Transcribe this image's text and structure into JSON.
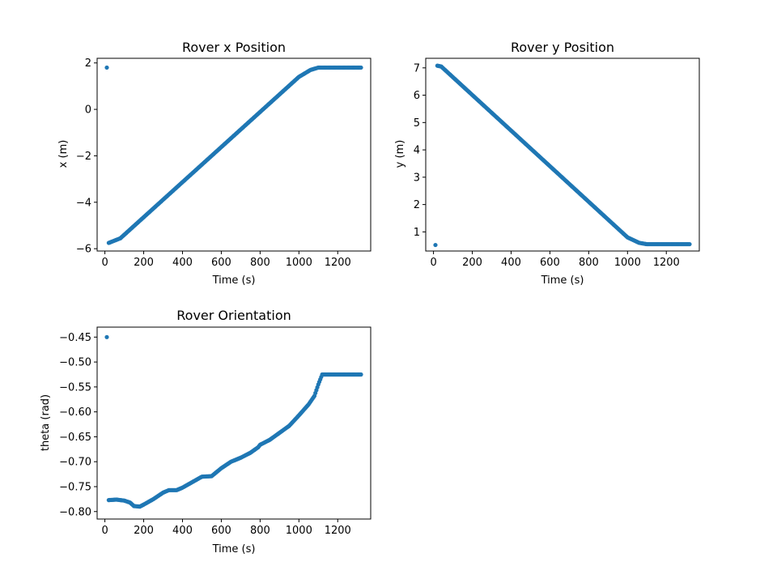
{
  "figure": {
    "background": "#ffffff",
    "marker_color": "#1f77b4"
  },
  "chart_data": [
    {
      "type": "scatter",
      "title": "Rover x Position",
      "xlabel": "Time (s)",
      "ylabel": "x (m)",
      "xlim": [
        -40,
        1370
      ],
      "ylim": [
        -6.1,
        2.2
      ],
      "xticks": [
        0,
        200,
        400,
        600,
        800,
        1000,
        1200
      ],
      "yticks": [
        -6,
        -4,
        -2,
        0,
        2
      ],
      "xtick_labels": [
        "0",
        "200",
        "400",
        "600",
        "800",
        "1000",
        "1200"
      ],
      "ytick_labels": [
        "−6",
        "−4",
        "−2",
        "0",
        "2"
      ],
      "grid": false,
      "points": {
        "first": [
          10,
          1.8
        ],
        "ramp_start": [
          20,
          -5.75
        ],
        "ramp_end": [
          1100,
          1.8
        ],
        "plateau_end": [
          1320,
          1.8
        ],
        "ramp_bend": [
          [
            80,
            -5.55
          ],
          [
            1000,
            1.4
          ],
          [
            1060,
            1.7
          ]
        ]
      }
    },
    {
      "type": "scatter",
      "title": "Rover y Position",
      "xlabel": "Time (s)",
      "ylabel": "y (m)",
      "xlim": [
        -40,
        1370
      ],
      "ylim": [
        0.3,
        7.35
      ],
      "xticks": [
        0,
        200,
        400,
        600,
        800,
        1000,
        1200
      ],
      "yticks": [
        1,
        2,
        3,
        4,
        5,
        6,
        7
      ],
      "xtick_labels": [
        "0",
        "200",
        "400",
        "600",
        "800",
        "1000",
        "1200"
      ],
      "ytick_labels": [
        "1",
        "2",
        "3",
        "4",
        "5",
        "6",
        "7"
      ],
      "grid": false,
      "points": {
        "first": [
          10,
          0.52
        ],
        "ramp_start": [
          20,
          7.08
        ],
        "ramp_end": [
          1100,
          0.55
        ],
        "plateau_end": [
          1320,
          0.55
        ],
        "ramp_bend": [
          [
            40,
            7.05
          ],
          [
            1000,
            0.8
          ],
          [
            1060,
            0.6
          ]
        ]
      }
    },
    {
      "type": "scatter",
      "title": "Rover Orientation",
      "xlabel": "Time (s)",
      "ylabel": "theta (rad)",
      "xlim": [
        -40,
        1370
      ],
      "ylim": [
        -0.815,
        -0.43
      ],
      "xticks": [
        0,
        200,
        400,
        600,
        800,
        1000,
        1200
      ],
      "yticks": [
        -0.8,
        -0.75,
        -0.7,
        -0.65,
        -0.6,
        -0.55,
        -0.5,
        -0.45
      ],
      "xtick_labels": [
        "0",
        "200",
        "400",
        "600",
        "800",
        "1000",
        "1200"
      ],
      "ytick_labels": [
        "−0.80",
        "−0.75",
        "−0.70",
        "−0.65",
        "−0.60",
        "−0.55",
        "−0.50",
        "−0.45"
      ],
      "grid": false,
      "points": {
        "first": [
          10,
          -0.45
        ],
        "curve": [
          [
            20,
            -0.777
          ],
          [
            60,
            -0.776
          ],
          [
            100,
            -0.778
          ],
          [
            130,
            -0.782
          ],
          [
            150,
            -0.789
          ],
          [
            180,
            -0.79
          ],
          [
            200,
            -0.786
          ],
          [
            250,
            -0.775
          ],
          [
            300,
            -0.762
          ],
          [
            330,
            -0.757
          ],
          [
            370,
            -0.757
          ],
          [
            400,
            -0.752
          ],
          [
            450,
            -0.741
          ],
          [
            500,
            -0.73
          ],
          [
            550,
            -0.729
          ],
          [
            600,
            -0.713
          ],
          [
            650,
            -0.7
          ],
          [
            700,
            -0.692
          ],
          [
            750,
            -0.682
          ],
          [
            790,
            -0.671
          ],
          [
            800,
            -0.666
          ],
          [
            850,
            -0.656
          ],
          [
            900,
            -0.642
          ],
          [
            950,
            -0.628
          ],
          [
            1000,
            -0.607
          ],
          [
            1050,
            -0.585
          ],
          [
            1080,
            -0.568
          ],
          [
            1100,
            -0.545
          ],
          [
            1120,
            -0.525
          ]
        ],
        "plateau": [
          [
            1120,
            -0.525
          ],
          [
            1320,
            -0.525
          ]
        ]
      }
    }
  ]
}
